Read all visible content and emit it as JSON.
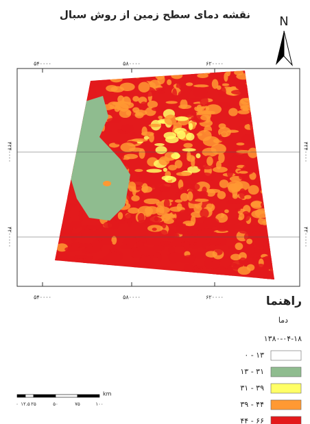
{
  "title": "نقشه دمای سطح زمین از روش سبال",
  "north": "N",
  "graticule": {
    "top": [
      "۵۴۰۰۰۰",
      "۵۸۰۰۰۰",
      "۶۲۰۰۰۰"
    ],
    "bottom": [
      "۵۴۰۰۰۰",
      "۵۸۰۰۰۰",
      "۶۲۰۰۰۰"
    ],
    "left": [
      "۴۲۴۰۰۰۰",
      "۴۲۰۰۰۰۰"
    ],
    "right": [
      "۴۲۴۰۰۰۰",
      "۴۲۰۰۰۰۰"
    ]
  },
  "legend": {
    "title": "راهنما",
    "subtitle": "دما",
    "date": "۱۳۸۰-۰۴-۱۸",
    "items": [
      {
        "label": "۰ - ۱۳",
        "color": "#ffffff"
      },
      {
        "label": "۱۳ - ۳۱",
        "color": "#8fbc8f"
      },
      {
        "label": "۳۱ - ۳۹",
        "color": "#ffff66"
      },
      {
        "label": "۳۹ - ۴۴",
        "color": "#ff9933"
      },
      {
        "label": "۴۴ - ۶۶",
        "color": "#e31a1c"
      }
    ]
  },
  "scale_bar": {
    "unit": "km",
    "labels": [
      "۰",
      "۱۲.۵",
      "۲۵",
      "۵۰",
      "۷۵",
      "۱۰۰"
    ]
  }
}
